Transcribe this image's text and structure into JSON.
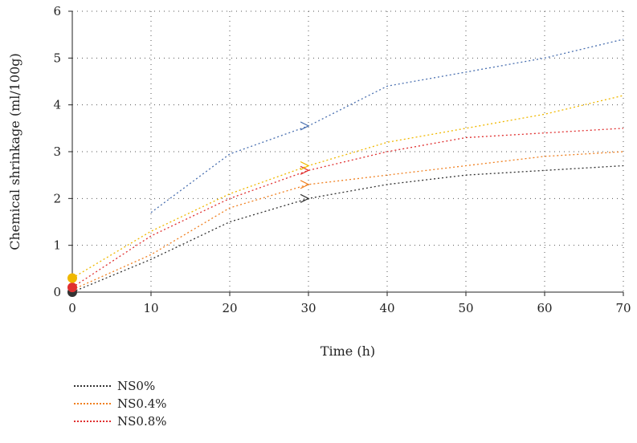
{
  "chart_data": {
    "type": "line",
    "title": "",
    "xlabel": "Time (h)",
    "ylabel": "Chemical shrinkage (ml/100g)",
    "xlim": [
      0,
      70
    ],
    "ylim": [
      0,
      6
    ],
    "xticks": [
      0,
      10,
      20,
      30,
      40,
      50,
      60,
      70
    ],
    "yticks": [
      0,
      1,
      2,
      3,
      4,
      5,
      6
    ],
    "grid": true,
    "legend_position": "bottom-left",
    "series": [
      {
        "name": "NS0%",
        "color": "#333333",
        "x": [
          0,
          10,
          20,
          30,
          40,
          50,
          60,
          70
        ],
        "y": [
          0.0,
          0.7,
          1.5,
          2.0,
          2.3,
          2.5,
          2.6,
          2.7
        ]
      },
      {
        "name": "NS0.4%",
        "color": "#f08020",
        "x": [
          0,
          10,
          20,
          30,
          40,
          50,
          60,
          70
        ],
        "y": [
          0.05,
          0.8,
          1.8,
          2.3,
          2.5,
          2.7,
          2.9,
          3.0
        ]
      },
      {
        "name": "NS0.8%",
        "color": "#e03030",
        "x": [
          0,
          10,
          20,
          30,
          40,
          50,
          60,
          70
        ],
        "y": [
          0.1,
          1.2,
          2.0,
          2.6,
          3.0,
          3.3,
          3.4,
          3.5
        ]
      },
      {
        "name": "",
        "color": "#f0b800",
        "x": [
          0,
          10,
          20,
          30,
          40,
          50,
          60,
          70
        ],
        "y": [
          0.3,
          1.3,
          2.1,
          2.7,
          3.2,
          3.5,
          3.8,
          4.2
        ]
      },
      {
        "name": "",
        "color": "#4a70b0",
        "x": [
          10,
          20,
          30,
          40,
          50,
          60,
          70
        ],
        "y": [
          1.7,
          2.95,
          3.55,
          4.4,
          4.7,
          5.0,
          5.4
        ]
      }
    ],
    "start_markers": [
      {
        "series": 0,
        "x": 0,
        "y": 0.0
      },
      {
        "series": 2,
        "x": 0,
        "y": 0.1
      },
      {
        "series": 3,
        "x": 0,
        "y": 0.3
      }
    ],
    "arrow_markers": [
      {
        "series": 0,
        "x": 29.5,
        "y": 2.0
      },
      {
        "series": 1,
        "x": 29.5,
        "y": 2.3
      },
      {
        "series": 2,
        "x": 29.5,
        "y": 2.6
      },
      {
        "series": 3,
        "x": 29.5,
        "y": 2.7
      },
      {
        "series": 4,
        "x": 29.5,
        "y": 3.55
      }
    ]
  }
}
